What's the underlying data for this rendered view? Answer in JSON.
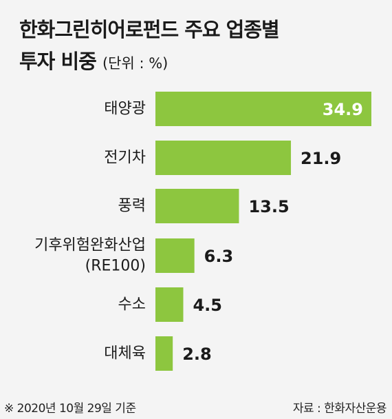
{
  "header": {
    "title_line1": "한화그린히어로펀드 주요 업종별",
    "title_line2": "투자 비중",
    "unit": "(단위 : %)"
  },
  "chart_data": {
    "type": "bar",
    "orientation": "horizontal",
    "title": "한화그린히어로펀드 주요 업종별 투자 비중",
    "unit": "(단위 : %)",
    "categories": [
      [
        "태양광"
      ],
      [
        "전기차"
      ],
      [
        "풍력"
      ],
      [
        "기후위험완화산업",
        "(RE100)"
      ],
      [
        "수소"
      ],
      [
        "대체육"
      ]
    ],
    "values": [
      34.9,
      21.9,
      13.5,
      6.3,
      4.5,
      2.8
    ],
    "value_labels": [
      "34.9",
      "21.9",
      "13.5",
      "6.3",
      "4.5",
      "2.8"
    ],
    "bar_color": "#8dc63f",
    "highlight_label_color": "#ffffff",
    "label_color": "#1a1a1a"
  },
  "footer": {
    "note": "※ 2020년 10월 29일 기준",
    "source": "자료 : 한화자산운용"
  }
}
